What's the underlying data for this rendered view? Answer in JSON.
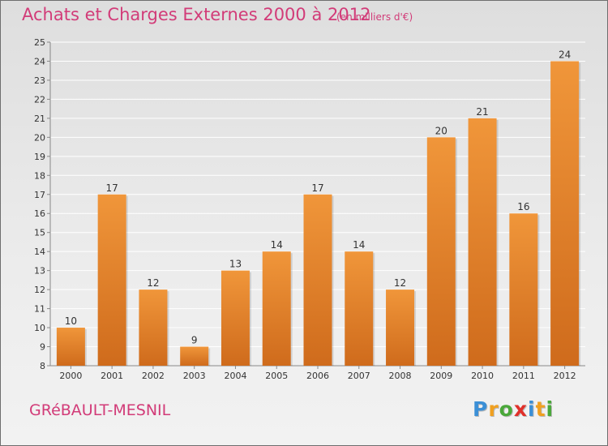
{
  "header": {
    "title": "Achats et Charges Externes 2000 à 2012",
    "unit": "(en milliers d'€)"
  },
  "footer": {
    "place": "GRéBAULT-MESNIL",
    "brand_letters": [
      "P",
      "r",
      "o",
      "x",
      "i",
      "t",
      "i"
    ],
    "brand_colors": [
      "#3b8fd6",
      "#f0a020",
      "#4aa83a",
      "#e0302a",
      "#3b8fd6",
      "#f0a020",
      "#4aa83a"
    ]
  },
  "chart_data": {
    "type": "bar",
    "title": "Achats et Charges Externes 2000 à 2012",
    "subtitle": "(en milliers d'€)",
    "categories": [
      "2000",
      "2001",
      "2002",
      "2003",
      "2004",
      "2005",
      "2006",
      "2007",
      "2008",
      "2009",
      "2010",
      "2011",
      "2012"
    ],
    "values": [
      10,
      17,
      12,
      9,
      13,
      14,
      17,
      14,
      12,
      20,
      21,
      16,
      24
    ],
    "ylim": [
      8,
      25
    ],
    "yticks": [
      8,
      9,
      10,
      11,
      12,
      13,
      14,
      15,
      16,
      17,
      18,
      19,
      20,
      21,
      22,
      23,
      24,
      25
    ],
    "grid": true,
    "bar_color": "#f0963a",
    "bar_color_dark": "#cf6b1c"
  }
}
